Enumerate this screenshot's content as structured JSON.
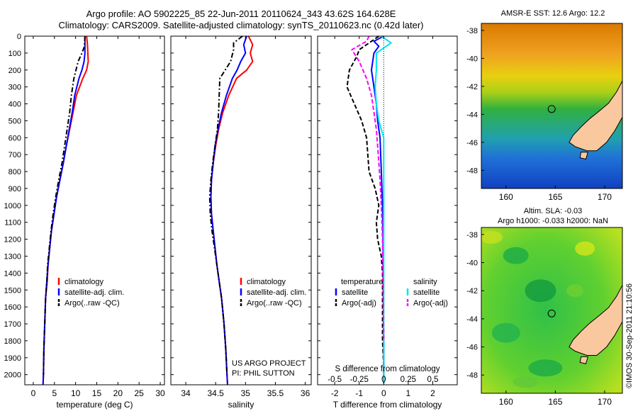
{
  "header": {
    "title_line1": "Argo profile: AO 5902225_85 22-Jun-2011 20110624_343 43.62S 164.628E",
    "title_line2": "Climatology: CARS2009. Satellite-adjusted climatology: synTS_20110623.nc (0.42d later)"
  },
  "chart_data": [
    {
      "id": "temperature",
      "type": "line",
      "xlabel": "temperature (deg C)",
      "ylabel": "",
      "xlim": [
        -2,
        31
      ],
      "ylim": [
        2060,
        0
      ],
      "xticks": [
        0,
        5,
        10,
        15,
        20,
        25,
        30
      ],
      "yticks": [
        0,
        100,
        200,
        300,
        400,
        500,
        600,
        700,
        800,
        900,
        1000,
        1100,
        1200,
        1300,
        1400,
        1500,
        1600,
        1700,
        1800,
        1900,
        2000
      ],
      "legend": [
        "climatology",
        "satellite-adj. clim.",
        "Argo(..raw -QC)"
      ],
      "series": [
        {
          "name": "climatology",
          "color": "#ff0000",
          "style": "solid",
          "x": [
            12.6,
            12.8,
            12.9,
            13.0,
            12.6,
            11.7,
            10.2,
            9.4,
            8.6,
            7.8,
            7.1,
            6.3,
            5.5,
            4.9,
            4.3,
            3.9,
            3.5,
            3.3,
            2.9,
            2.7,
            2.5,
            2.4,
            2.3
          ],
          "y": [
            0,
            50,
            100,
            150,
            200,
            250,
            350,
            450,
            550,
            650,
            750,
            850,
            950,
            1050,
            1150,
            1250,
            1350,
            1450,
            1550,
            1700,
            1850,
            2000,
            2060
          ]
        },
        {
          "name": "satellite-adj. clim.",
          "color": "#0000ff",
          "style": "solid",
          "x": [
            12.2,
            12.2,
            12.2,
            12.0,
            11.5,
            10.8,
            9.8,
            9.2,
            8.5,
            7.8,
            7.1,
            6.3,
            5.5,
            4.9,
            4.3,
            3.9,
            3.5,
            3.2,
            2.9,
            2.7,
            2.5,
            2.4,
            2.3
          ],
          "y": [
            0,
            50,
            100,
            150,
            200,
            250,
            350,
            450,
            550,
            650,
            750,
            850,
            950,
            1050,
            1150,
            1250,
            1350,
            1450,
            1550,
            1700,
            1850,
            2000,
            2060
          ]
        },
        {
          "name": "Argo(..raw -QC)",
          "color": "#000000",
          "style": "dashdot",
          "x": [
            12.2,
            12.1,
            11.5,
            10.6,
            10.1,
            9.6,
            9.0,
            8.6,
            8.0,
            7.4,
            6.8,
            6.0,
            5.3,
            4.7,
            4.2,
            3.8,
            3.4,
            3.2,
            2.9,
            2.7,
            2.5,
            2.4
          ],
          "y": [
            0,
            60,
            100,
            150,
            200,
            250,
            350,
            450,
            550,
            650,
            750,
            850,
            950,
            1050,
            1150,
            1250,
            1350,
            1450,
            1550,
            1700,
            1850,
            2000
          ]
        }
      ]
    },
    {
      "id": "salinity",
      "type": "line",
      "xlabel": "salinity",
      "ylabel": "",
      "xlim": [
        33.75,
        36.1
      ],
      "ylim": [
        2060,
        0
      ],
      "xticks": [
        34,
        34.5,
        35,
        35.5,
        36
      ],
      "legend": [
        "climatology",
        "satellite-adj. clim.",
        "Argo(..raw -QC)"
      ],
      "annotation": [
        "US ARGO PROJECT",
        "PI: PHIL SUTTON"
      ],
      "series": [
        {
          "name": "climatology",
          "color": "#ff0000",
          "style": "solid",
          "x": [
            35.05,
            35.12,
            35.08,
            35.12,
            35.02,
            34.85,
            34.72,
            34.62,
            34.55,
            34.5,
            34.46,
            34.43,
            34.42,
            34.43,
            34.46,
            34.49,
            34.52,
            34.56,
            34.6,
            34.64,
            34.67,
            34.69,
            34.7
          ],
          "y": [
            0,
            50,
            100,
            150,
            200,
            250,
            350,
            450,
            550,
            650,
            750,
            850,
            950,
            1050,
            1150,
            1250,
            1350,
            1450,
            1550,
            1700,
            1850,
            2000,
            2060
          ]
        },
        {
          "name": "satellite-adj. clim.",
          "color": "#0000ff",
          "style": "solid",
          "x": [
            35.02,
            34.97,
            35.0,
            34.92,
            34.86,
            34.78,
            34.68,
            34.6,
            34.54,
            34.49,
            34.46,
            34.43,
            34.42,
            34.43,
            34.46,
            34.49,
            34.52,
            34.56,
            34.6,
            34.64,
            34.67,
            34.69,
            34.7
          ],
          "y": [
            0,
            50,
            100,
            150,
            200,
            250,
            350,
            450,
            550,
            650,
            750,
            850,
            950,
            1050,
            1150,
            1250,
            1350,
            1450,
            1550,
            1700,
            1850,
            2000,
            2060
          ]
        },
        {
          "name": "Argo(..raw -QC)",
          "color": "#000000",
          "style": "dashdot",
          "x": [
            34.95,
            34.8,
            34.8,
            34.75,
            34.66,
            34.57,
            34.56,
            34.55,
            34.53,
            34.49,
            34.45,
            34.42,
            34.4,
            34.41,
            34.44,
            34.48,
            34.52,
            34.56,
            34.6,
            34.64,
            34.67,
            34.69
          ],
          "y": [
            0,
            40,
            80,
            150,
            200,
            250,
            350,
            450,
            550,
            650,
            750,
            850,
            950,
            1050,
            1150,
            1250,
            1350,
            1450,
            1550,
            1700,
            1850,
            2000
          ]
        }
      ]
    },
    {
      "id": "difference",
      "type": "line",
      "xlabel_bottom": "T difference from climatology",
      "xlabel_top": "S difference from climatology",
      "xlim": [
        -2.7,
        3.0
      ],
      "ylim": [
        2060,
        0
      ],
      "xticks": [
        -2,
        -1,
        0,
        1,
        2
      ],
      "s_ticks": [
        "-0.5",
        "-0.25",
        "0",
        "0.25",
        "0.5"
      ],
      "s_tick_positions": [
        -2,
        -1,
        0,
        1,
        2
      ],
      "legend_temperature": {
        "heading": "temperature",
        "items": [
          "satellite",
          "Argo(-adj)"
        ]
      },
      "legend_salinity": {
        "heading": "salinity",
        "items": [
          "satellite",
          "Argo(-adj)"
        ]
      },
      "series": [
        {
          "name": "T satellite",
          "color": "#0000ff",
          "style": "solid",
          "x": [
            0.0,
            -0.4,
            -0.2,
            -0.4,
            -0.5,
            -0.4,
            -0.3,
            -0.25,
            -0.15,
            -0.1,
            -0.05,
            -0.03,
            -0.02,
            -0.02,
            -0.01,
            -0.01,
            0.0,
            0.0,
            0.0,
            0.0
          ],
          "y": [
            0,
            30,
            60,
            100,
            200,
            300,
            400,
            500,
            600,
            800,
            1000,
            1200,
            1400,
            1500,
            1600,
            1700,
            1800,
            1900,
            2000,
            2050
          ]
        },
        {
          "name": "T Argo(-adj)",
          "color": "#000000",
          "style": "dashed",
          "x": [
            -0.2,
            -0.6,
            -1.0,
            -1.1,
            -1.4,
            -1.5,
            -1.2,
            -0.9,
            -0.7,
            -0.6,
            -0.35,
            -0.2,
            -0.3,
            -0.25,
            -0.1,
            -0.05,
            -0.05,
            -0.05,
            0.0,
            0.0
          ],
          "y": [
            0,
            40,
            80,
            120,
            200,
            300,
            400,
            500,
            600,
            800,
            900,
            1000,
            1100,
            1200,
            1300,
            1400,
            1600,
            1800,
            1950,
            2050
          ]
        },
        {
          "name": "S satellite",
          "color": "#00e5ee",
          "style": "solid",
          "x": [
            -0.1,
            0.3,
            -0.3,
            -0.3,
            -0.35,
            -0.3,
            -0.2,
            0.0,
            0.0,
            0.0,
            0.0,
            0.0,
            0.0,
            0.0,
            0.0,
            0.0
          ],
          "y": [
            0,
            40,
            100,
            200,
            300,
            400,
            500,
            600,
            700,
            800,
            1000,
            1200,
            1400,
            1600,
            1800,
            2050
          ]
        },
        {
          "name": "S Argo(-adj)",
          "color": "#ff00ff",
          "style": "dashed",
          "x": [
            -0.6,
            -0.7,
            -1.3,
            -1.0,
            -0.7,
            -0.5,
            -0.4,
            -0.3,
            -0.25,
            -0.2,
            -0.15,
            -0.1,
            -0.05,
            -0.02,
            0.0
          ],
          "y": [
            0,
            30,
            80,
            150,
            250,
            350,
            450,
            550,
            650,
            750,
            850,
            1000,
            1200,
            1500,
            1800
          ]
        }
      ]
    },
    {
      "id": "map-sst",
      "type": "heatmap",
      "title": "AMSR-E SST: 12.6 Argo: 12.2",
      "xticks": [
        160,
        165,
        170
      ],
      "yticks": [
        -38,
        -40,
        -42,
        -44,
        -46,
        -48
      ],
      "xlim": [
        157.5,
        171.8
      ],
      "ylim": [
        -49.3,
        -37.5
      ],
      "argo_position": {
        "lon": 164.628,
        "lat": -43.62
      }
    },
    {
      "id": "map-sla",
      "type": "heatmap",
      "title_line1": "Altim. SLA: -0.03",
      "title_line2": "Argo h1000: -0.033 h2000: NaN",
      "xticks": [
        160,
        165,
        170
      ],
      "yticks": [
        -38,
        -40,
        -42,
        -44,
        -46,
        -48
      ],
      "xlim": [
        157.5,
        171.8
      ],
      "ylim": [
        -49.3,
        -37.5
      ],
      "argo_position": {
        "lon": 164.628,
        "lat": -43.62
      }
    }
  ],
  "credit": "©IMOS 30-Sep-2011 21:10:56"
}
